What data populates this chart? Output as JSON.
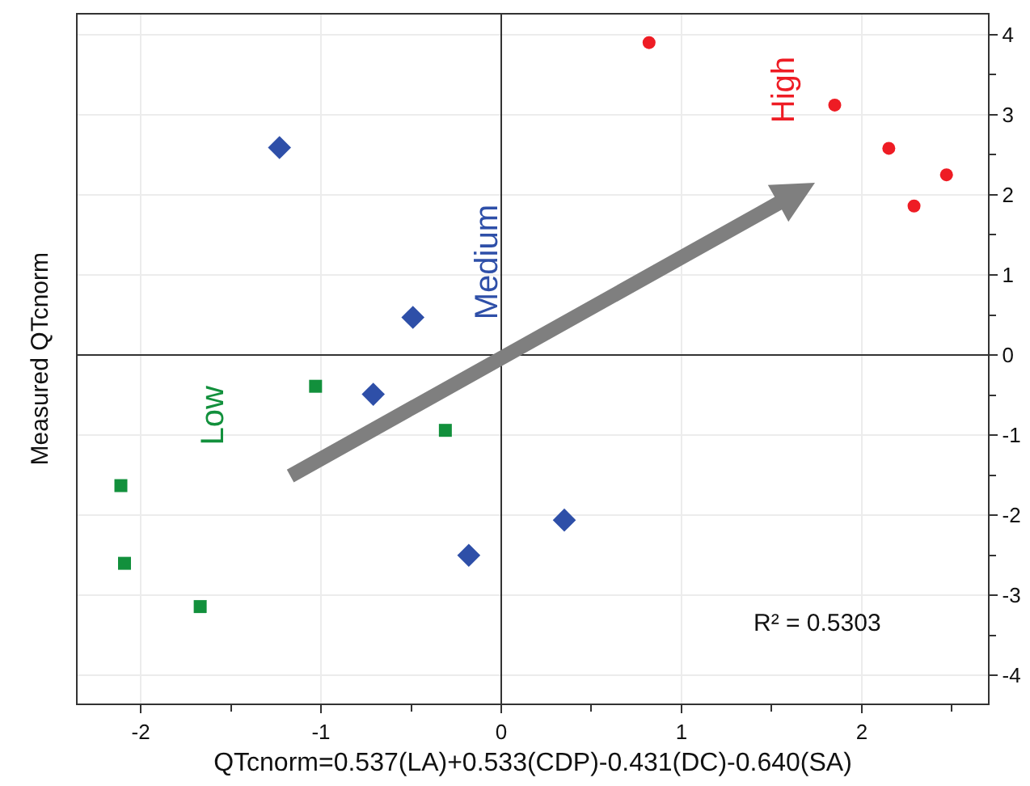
{
  "chart_data": {
    "type": "scatter",
    "xlabel": "QTcnorm=0.537(LA)+0.533(CDP)-0.431(DC)-0.640(SA)",
    "ylabel": "Measured QTcnorm",
    "series": [
      {
        "name": "Low",
        "color": "#12903c",
        "marker": "square",
        "x": [
          -1.03,
          -0.31,
          -2.11,
          -2.09,
          -1.67
        ],
        "values": [
          -0.39,
          -0.94,
          -1.63,
          -2.6,
          -3.14
        ]
      },
      {
        "name": "Medium",
        "color": "#2e4fa8",
        "marker": "diamond",
        "x": [
          -1.23,
          -0.49,
          -0.71,
          -0.18,
          0.35
        ],
        "values": [
          2.59,
          0.47,
          -0.49,
          -2.5,
          -2.06
        ]
      },
      {
        "name": "High",
        "color": "#ee1c24",
        "marker": "circle",
        "x": [
          0.82,
          1.85,
          2.15,
          2.47,
          2.29
        ],
        "values": [
          3.9,
          3.12,
          2.58,
          2.25,
          1.86
        ]
      }
    ],
    "xlim": [
      -2.35,
      2.7
    ],
    "xticks": [
      -2,
      {
        "value": -1.5,
        "label": null
      },
      -1,
      {
        "value": -0.5,
        "label": null
      },
      0,
      {
        "value": 0.5,
        "label": null
      },
      1,
      {
        "value": 1.5,
        "label": null
      },
      2,
      {
        "value": 2.5,
        "label": null
      }
    ],
    "ylim": [
      -4.35,
      4.25
    ],
    "yticks": [
      -4,
      {
        "value": -3.5,
        "label": null
      },
      -3,
      {
        "value": -2.5,
        "label": null
      },
      -2,
      {
        "value": -1.5,
        "label": null
      },
      -1,
      {
        "value": -0.5,
        "label": null
      },
      0,
      {
        "value": 0.5,
        "label": null
      },
      1,
      {
        "value": 1.5,
        "label": null
      },
      2,
      {
        "value": 2.5,
        "label": null
      },
      3,
      {
        "value": 3.5,
        "label": null
      },
      4
    ],
    "grid": true,
    "annotations": [
      "R² = 0.5303"
    ]
  }
}
